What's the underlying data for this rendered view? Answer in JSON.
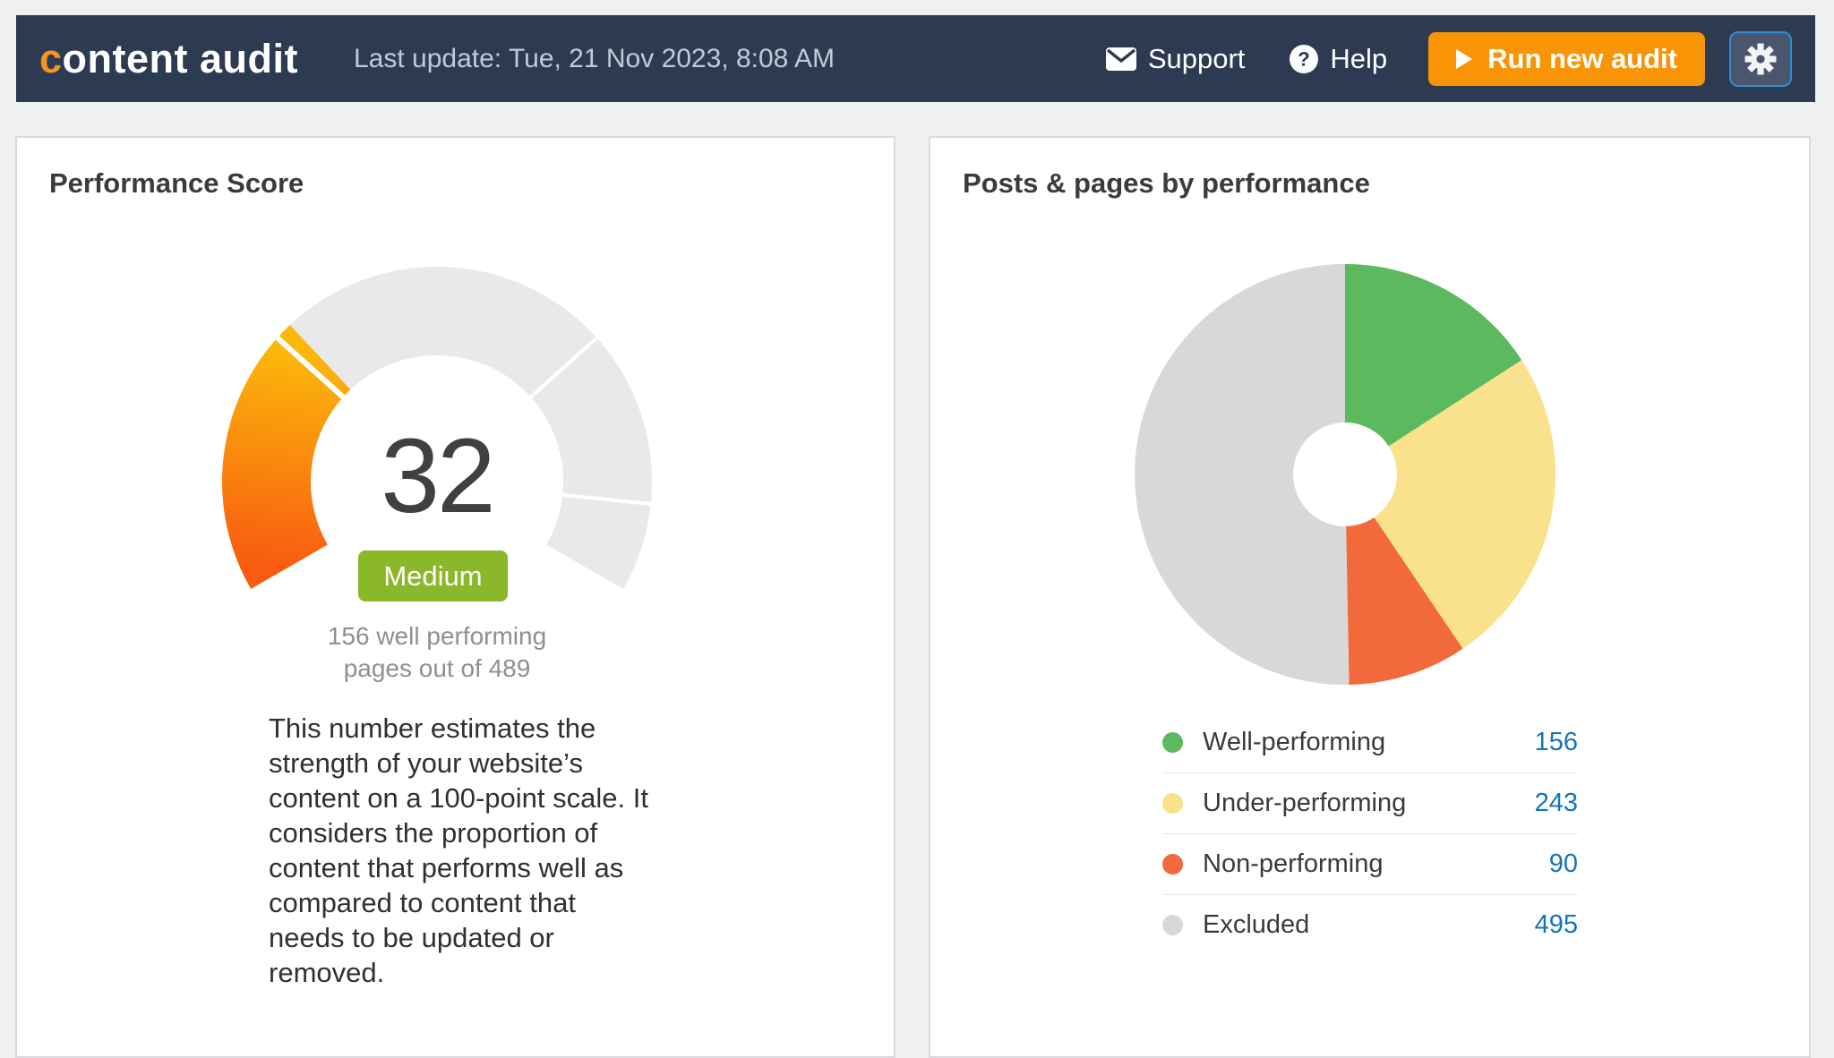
{
  "colors": {
    "header_bg": "#2d3b52",
    "logo_orange": "#f7941e",
    "accent_orange": "#f89406",
    "badge_green": "#8ab82a",
    "link_blue": "#1474bb",
    "gear_button_bg": "#4a566e",
    "gear_button_border": "#2f8ed5"
  },
  "header": {
    "logo_prefix": "c",
    "logo_rest": "ontent audit",
    "last_update": "Last update: Tue, 21 Nov 2023, 8:08 AM",
    "support_label": "Support",
    "help_label": "Help",
    "help_icon_glyph": "?",
    "run_audit_label": "Run new audit"
  },
  "performance_card": {
    "title": "Performance Score",
    "score": "32",
    "score_label": "Medium",
    "caption": "156 well performing\npages out of 489",
    "description": "This number estimates the\nstrength of your website’s\ncontent on a 100-point scale. It\nconsiders the proportion of\ncontent that performs well as\ncompared to content that\nneeds to be updated or\nremoved."
  },
  "distribution_card": {
    "title": "Posts & pages by performance",
    "legend": [
      {
        "label": "Well-performing",
        "value": "156"
      },
      {
        "label": "Under-performing",
        "value": "243"
      },
      {
        "label": "Non-performing",
        "value": "90"
      },
      {
        "label": "Excluded",
        "value": "495"
      }
    ]
  },
  "chart_data": [
    {
      "type": "gauge",
      "title": "Performance Score",
      "value": 32,
      "min": 0,
      "max": 100,
      "label": "Medium",
      "band_dividers": [
        30,
        70,
        90
      ],
      "start_angle_deg": 210,
      "sweep_deg": 240,
      "track_color": "#e9e9eb",
      "divider_color": "#ffffff",
      "fill_gradient": [
        "#f85c10",
        "#fbb70c"
      ],
      "center_text": "32",
      "caption": "156 well performing pages out of 489"
    },
    {
      "type": "pie",
      "donut": true,
      "title": "Posts & pages by performance",
      "labels": [
        "Well-performing",
        "Under-performing",
        "Non-performing",
        "Excluded"
      ],
      "values": [
        156,
        243,
        90,
        495
      ],
      "colors": [
        "#5cb95f",
        "#fae18b",
        "#f2693b",
        "#d8d8d8"
      ],
      "start_angle_deg": 0,
      "legend_position": "bottom-left"
    }
  ]
}
